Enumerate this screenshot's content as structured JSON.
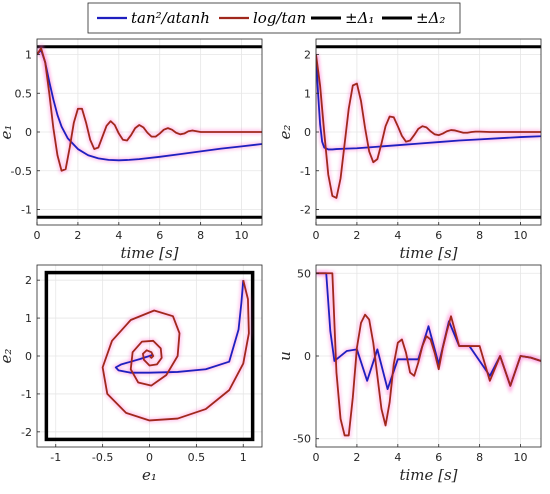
{
  "legend": {
    "entries": [
      {
        "label": "tan²/atanh",
        "color": "#1f1fbf",
        "style": "line"
      },
      {
        "label": "log/tan",
        "color": "#a0281c",
        "style": "line"
      },
      {
        "label": "±Δ₁",
        "color": "#000000",
        "style": "line"
      },
      {
        "label": "±Δ₂",
        "color": "#000000",
        "style": "line"
      }
    ]
  },
  "colors": {
    "blue": "#1f1fbf",
    "red": "#a0281c",
    "bound": "#000000",
    "glow": "#ff66cc"
  },
  "chart_data": [
    {
      "type": "line",
      "xlabel": "time [s]",
      "ylabel": "e₁",
      "xlim": [
        0,
        11
      ],
      "ylim": [
        -1.2,
        1.2
      ],
      "xticks": [
        0,
        2,
        4,
        6,
        8,
        10
      ],
      "yticks": [
        -1,
        -0.5,
        0,
        0.5,
        1
      ],
      "grid": true,
      "hlines": [
        1.1,
        -1.1
      ],
      "series": [
        {
          "name": "tan²/atanh",
          "x": [
            0,
            0.2,
            0.4,
            0.6,
            0.8,
            1,
            1.2,
            1.5,
            2,
            2.5,
            3,
            3.5,
            4,
            4.5,
            5,
            6,
            7,
            8,
            9,
            10,
            11
          ],
          "y": [
            1.0,
            1.06,
            0.9,
            0.65,
            0.42,
            0.22,
            0.07,
            -0.08,
            -0.22,
            -0.3,
            -0.34,
            -0.36,
            -0.365,
            -0.36,
            -0.35,
            -0.32,
            -0.285,
            -0.25,
            -0.215,
            -0.185,
            -0.155
          ]
        },
        {
          "name": "log/tan",
          "x": [
            0,
            0.2,
            0.4,
            0.6,
            0.8,
            1,
            1.2,
            1.4,
            1.6,
            1.8,
            2,
            2.2,
            2.4,
            2.6,
            2.8,
            3,
            3.2,
            3.4,
            3.6,
            3.8,
            4,
            4.2,
            4.4,
            4.6,
            4.8,
            5,
            5.2,
            5.4,
            5.6,
            5.8,
            6,
            6.2,
            6.4,
            6.6,
            6.8,
            7,
            7.2,
            7.4,
            7.6,
            7.8,
            8,
            8.5,
            9,
            9.5,
            10,
            10.5,
            11
          ],
          "y": [
            1.0,
            1.08,
            0.9,
            0.5,
            0.05,
            -0.3,
            -0.5,
            -0.48,
            -0.2,
            0.12,
            0.3,
            0.3,
            0.12,
            -0.1,
            -0.22,
            -0.2,
            -0.06,
            0.08,
            0.14,
            0.09,
            -0.02,
            -0.1,
            -0.11,
            -0.04,
            0.05,
            0.09,
            0.06,
            -0.01,
            -0.06,
            -0.06,
            -0.02,
            0.03,
            0.05,
            0.03,
            -0.01,
            -0.03,
            -0.02,
            0.01,
            0.02,
            0.01,
            0.0,
            0.0,
            0.0,
            0.0,
            0.0,
            0.0,
            0.0
          ]
        }
      ]
    },
    {
      "type": "line",
      "xlabel": "time [s]",
      "ylabel": "e₂",
      "xlim": [
        0,
        11
      ],
      "ylim": [
        -2.4,
        2.4
      ],
      "xticks": [
        0,
        2,
        4,
        6,
        8,
        10
      ],
      "yticks": [
        -2,
        -1,
        0,
        1,
        2
      ],
      "grid": true,
      "hlines": [
        2.2,
        -2.2
      ],
      "series": [
        {
          "name": "tan²/atanh",
          "x": [
            0,
            0.1,
            0.2,
            0.3,
            0.4,
            0.6,
            0.8,
            1,
            1.5,
            2,
            3,
            4,
            5,
            6,
            7,
            8,
            9,
            10,
            11
          ],
          "y": [
            2.0,
            1.0,
            0.2,
            -0.25,
            -0.4,
            -0.45,
            -0.45,
            -0.44,
            -0.43,
            -0.42,
            -0.38,
            -0.34,
            -0.3,
            -0.26,
            -0.22,
            -0.19,
            -0.16,
            -0.13,
            -0.11
          ]
        },
        {
          "name": "log/tan",
          "x": [
            0,
            0.2,
            0.4,
            0.6,
            0.8,
            1,
            1.2,
            1.4,
            1.6,
            1.8,
            2,
            2.2,
            2.4,
            2.6,
            2.8,
            3,
            3.2,
            3.4,
            3.6,
            3.8,
            4,
            4.2,
            4.4,
            4.6,
            4.8,
            5,
            5.2,
            5.4,
            5.6,
            5.8,
            6,
            6.2,
            6.4,
            6.6,
            6.8,
            7,
            7.2,
            7.4,
            7.6,
            7.8,
            8,
            8.5,
            9,
            9.5,
            10,
            10.5,
            11
          ],
          "y": [
            2.0,
            1.2,
            0.0,
            -1.1,
            -1.65,
            -1.7,
            -1.2,
            -0.3,
            0.6,
            1.2,
            1.25,
            0.8,
            0.1,
            -0.5,
            -0.78,
            -0.7,
            -0.3,
            0.15,
            0.4,
            0.38,
            0.15,
            -0.1,
            -0.25,
            -0.22,
            -0.08,
            0.08,
            0.15,
            0.12,
            0.02,
            -0.06,
            -0.08,
            -0.04,
            0.02,
            0.05,
            0.04,
            0.01,
            -0.02,
            -0.02,
            0.0,
            0.01,
            0.01,
            0.0,
            0.0,
            0.0,
            0.0,
            0.0,
            0.0
          ]
        }
      ]
    },
    {
      "type": "line",
      "xlabel": "e₁",
      "ylabel": "e₂",
      "xlim": [
        -1.2,
        1.2
      ],
      "ylim": [
        -2.4,
        2.4
      ],
      "xticks": [
        -1,
        -0.5,
        0,
        0.5,
        1
      ],
      "yticks": [
        -2,
        -1,
        0,
        1,
        2
      ],
      "grid": true,
      "box": {
        "x": [
          -1.1,
          1.1
        ],
        "y": [
          -2.2,
          2.2
        ]
      },
      "series": [
        {
          "name": "tan²/atanh",
          "x": [
            1.0,
            0.98,
            0.95,
            0.85,
            0.6,
            0.3,
            0.0,
            -0.2,
            -0.33,
            -0.36,
            -0.3,
            -0.2,
            -0.1,
            -0.04,
            0.0,
            0.02,
            0.01,
            0.0
          ],
          "y": [
            2.0,
            1.4,
            0.7,
            -0.15,
            -0.35,
            -0.42,
            -0.44,
            -0.44,
            -0.38,
            -0.3,
            -0.22,
            -0.15,
            -0.08,
            -0.03,
            0.0,
            0.02,
            0.01,
            0.0
          ]
        },
        {
          "name": "log/tan",
          "x": [
            1.0,
            1.05,
            1.06,
            1.0,
            0.85,
            0.6,
            0.3,
            0.0,
            -0.25,
            -0.45,
            -0.5,
            -0.4,
            -0.2,
            0.05,
            0.25,
            0.32,
            0.3,
            0.18,
            0.02,
            -0.12,
            -0.2,
            -0.18,
            -0.08,
            0.04,
            0.12,
            0.13,
            0.08,
            0.0,
            -0.06,
            -0.07,
            -0.03,
            0.02,
            0.04,
            0.02,
            0.0
          ],
          "y": [
            2.0,
            1.5,
            0.6,
            -0.2,
            -0.9,
            -1.4,
            -1.65,
            -1.7,
            -1.5,
            -1.0,
            -0.3,
            0.4,
            0.95,
            1.2,
            1.05,
            0.6,
            0.0,
            -0.5,
            -0.78,
            -0.7,
            -0.35,
            0.1,
            0.38,
            0.4,
            0.2,
            -0.05,
            -0.22,
            -0.25,
            -0.1,
            0.06,
            0.15,
            0.1,
            0.0,
            -0.05,
            0.0
          ]
        }
      ]
    },
    {
      "type": "line",
      "xlabel": "time [s]",
      "ylabel": "u",
      "xlim": [
        0,
        11
      ],
      "ylim": [
        -55,
        55
      ],
      "xticks": [
        0,
        2,
        4,
        6,
        8,
        10
      ],
      "yticks": [
        -50,
        0,
        50
      ],
      "grid": true,
      "series": [
        {
          "name": "tan²/atanh",
          "x": [
            0,
            0.3,
            0.5,
            0.7,
            0.9,
            1.1,
            1.5,
            2.0,
            2.5,
            3.0,
            3.5,
            4.0,
            4.5,
            5.0,
            5.5,
            6.0,
            6.5,
            7.0,
            7.5,
            8.0,
            8.5,
            9.0,
            9.5,
            10,
            10.5,
            11
          ],
          "y": [
            50,
            50,
            50,
            15,
            -3,
            -1,
            3,
            4,
            -15,
            4,
            -20,
            -2,
            -2,
            -2,
            18,
            -5,
            21,
            6,
            6,
            -3,
            -12,
            0,
            -18,
            0,
            -1,
            -3
          ]
        },
        {
          "name": "log/tan",
          "x": [
            0,
            0.3,
            0.6,
            0.8,
            1.0,
            1.2,
            1.4,
            1.6,
            1.8,
            2.0,
            2.2,
            2.4,
            2.6,
            2.8,
            3.0,
            3.2,
            3.4,
            3.6,
            3.8,
            4.0,
            4.2,
            4.4,
            4.6,
            4.8,
            5.0,
            5.2,
            5.4,
            5.6,
            5.8,
            6.0,
            6.2,
            6.4,
            6.6,
            6.8,
            7.0,
            7.5,
            8.0,
            8.5,
            9.0,
            9.5,
            10,
            10.5,
            11
          ],
          "y": [
            50,
            50,
            50,
            50,
            -10,
            -38,
            -48,
            -48,
            -25,
            5,
            20,
            25,
            22,
            8,
            -12,
            -32,
            -42,
            -28,
            -5,
            8,
            10,
            2,
            -10,
            -12,
            -4,
            6,
            12,
            10,
            2,
            -8,
            5,
            15,
            24,
            15,
            6,
            6,
            6,
            -15,
            0,
            -18,
            0,
            -1,
            -3
          ]
        }
      ]
    }
  ]
}
